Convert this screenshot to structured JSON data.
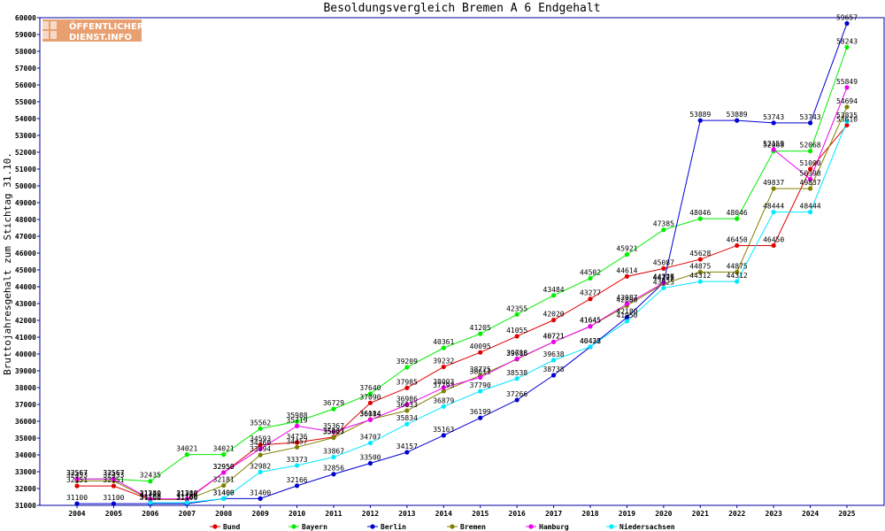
{
  "logo": {
    "line1": "ÖFFENTLICHER",
    "line2": "DIENST.INFO"
  },
  "chart_data": {
    "type": "line",
    "title": "Besoldungsvergleich Bremen A 6 Endgehalt",
    "xlabel": "",
    "ylabel": "Bruttojahresgehalt zum Stichtag 31.10.",
    "categories": [
      "2004",
      "2005",
      "2006",
      "2007",
      "2008",
      "2009",
      "2010",
      "2011",
      "2012",
      "2013",
      "2014",
      "2015",
      "2016",
      "2017",
      "2018",
      "2019",
      "2020",
      "2021",
      "2022",
      "2023",
      "2024",
      "2025"
    ],
    "ylim": [
      31000,
      60000
    ],
    "yticks": [
      31000,
      32000,
      33000,
      34000,
      35000,
      36000,
      37000,
      38000,
      39000,
      40000,
      41000,
      42000,
      43000,
      44000,
      45000,
      46000,
      47000,
      48000,
      49000,
      50000,
      51000,
      52000,
      53000,
      54000,
      55000,
      56000,
      57000,
      58000,
      59000,
      60000
    ],
    "grid": false,
    "legend_position": "bottom",
    "series": [
      {
        "name": "Bund",
        "color": "#e00000",
        "values": [
          32151,
          32151,
          31340,
          31340,
          32950,
          34593,
          34736,
          35063,
          37090,
          37985,
          39232,
          40095,
          41055,
          42020,
          43277,
          44614,
          45087,
          45628,
          46450,
          46450,
          51000,
          53610
        ]
      },
      {
        "name": "Bayern",
        "color": "#00ee00",
        "values": [
          32567,
          32567,
          32435,
          34021,
          34021,
          35562,
          35988,
          36729,
          37640,
          39209,
          40361,
          41205,
          42355,
          43484,
          44502,
          45921,
          47385,
          48046,
          48046,
          52068,
          52068,
          58243
        ]
      },
      {
        "name": "Berlin",
        "color": "#0000d0",
        "values": [
          31100,
          31100,
          31100,
          31100,
          31400,
          31400,
          32166,
          32856,
          33500,
          34157,
          35163,
          36199,
          37266,
          38738,
          40425,
          42180,
          44247,
          53889,
          53889,
          53743,
          53743,
          59657
        ]
      },
      {
        "name": "Bremen",
        "color": "#808000",
        "values": [
          32453,
          32453,
          31340,
          31340,
          32181,
          33994,
          34457,
          35027,
          36114,
          36633,
          37793,
          38725,
          39686,
          40721,
          41645,
          42880,
          44175,
          44875,
          44875,
          49837,
          49837,
          54694
        ]
      },
      {
        "name": "Hamburg",
        "color": "#ee00ee",
        "values": [
          32567,
          32567,
          31380,
          31380,
          32950,
          34360,
          35719,
          35367,
          36084,
          36986,
          38003,
          38611,
          39718,
          40721,
          41645,
          42987,
          44226,
          null,
          null,
          52159,
          50398,
          55849
        ]
      },
      {
        "name": "Niedersachsen",
        "color": "#00e8ff",
        "values": [
          null,
          null,
          31160,
          31160,
          31400,
          32982,
          33373,
          33867,
          34707,
          35834,
          36879,
          37790,
          38538,
          39638,
          40432,
          41950,
          43925,
          44312,
          44312,
          48444,
          48444,
          53835
        ]
      }
    ]
  }
}
